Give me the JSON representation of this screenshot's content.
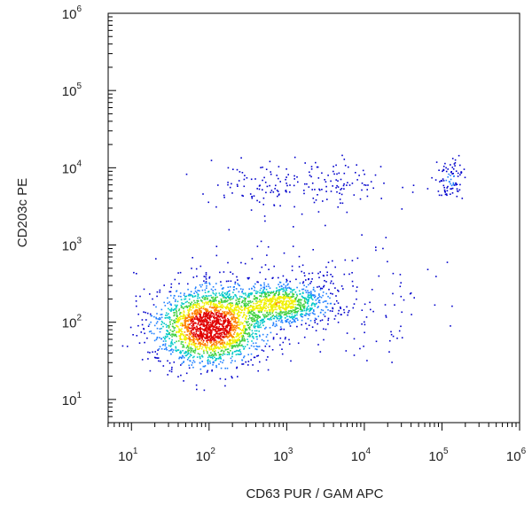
{
  "chart_data": {
    "type": "scatter",
    "subtype": "flow-cytometry-density-dot-plot",
    "xlabel": "CD63 PUR / GAM APC",
    "ylabel": "CD203c PE",
    "x_scale": "log",
    "y_scale": "log",
    "xlim": [
      10,
      1000000
    ],
    "ylim": [
      10,
      1000000
    ],
    "x_ticks": [
      {
        "base": "10",
        "exp": "1",
        "value": 10
      },
      {
        "base": "10",
        "exp": "2",
        "value": 100
      },
      {
        "base": "10",
        "exp": "3",
        "value": 1000
      },
      {
        "base": "10",
        "exp": "4",
        "value": 10000
      },
      {
        "base": "10",
        "exp": "5",
        "value": 100000
      },
      {
        "base": "10",
        "exp": "6",
        "value": 1000000
      }
    ],
    "y_ticks": [
      {
        "base": "10",
        "exp": "1",
        "value": 10
      },
      {
        "base": "10",
        "exp": "2",
        "value": 100
      },
      {
        "base": "10",
        "exp": "3",
        "value": 1000
      },
      {
        "base": "10",
        "exp": "4",
        "value": 10000
      },
      {
        "base": "10",
        "exp": "5",
        "value": 100000
      },
      {
        "base": "10",
        "exp": "6",
        "value": 1000000
      }
    ],
    "grid": false,
    "legend": "none",
    "color_scale": [
      "#0000cc",
      "#2080ff",
      "#00c8c8",
      "#40d040",
      "#f0f000",
      "#ff8000",
      "#e00000"
    ],
    "populations": [
      {
        "center_log": [
          2.0,
          1.95
        ],
        "spread_log": [
          0.35,
          0.25
        ],
        "count": 2200,
        "peak_density": 1.0
      },
      {
        "center_log": [
          2.9,
          2.25
        ],
        "spread_log": [
          0.3,
          0.13
        ],
        "count": 900,
        "peak_density": 0.55
      },
      {
        "center_log": [
          3.2,
          3.8
        ],
        "spread_log": [
          0.6,
          0.15
        ],
        "count": 190,
        "peak_density": 0.05
      },
      {
        "center_log": [
          5.1,
          3.85
        ],
        "spread_log": [
          0.1,
          0.12
        ],
        "count": 90,
        "peak_density": 0.1
      },
      {
        "center_log": [
          3.3,
          2.35
        ],
        "spread_log": [
          0.8,
          0.35
        ],
        "count": 260,
        "peak_density": 0.04
      }
    ]
  }
}
